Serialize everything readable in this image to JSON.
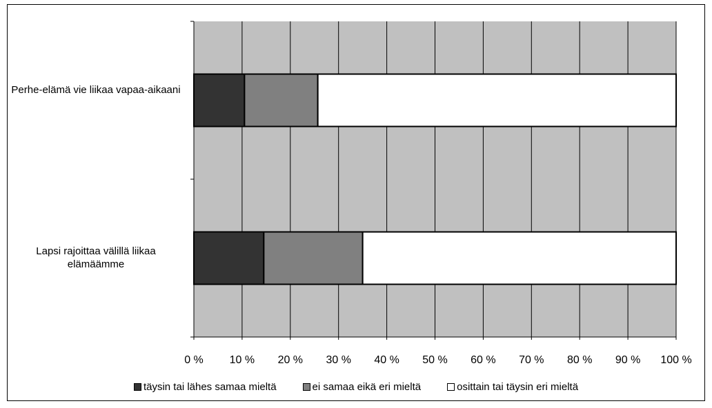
{
  "chart_data": {
    "type": "bar",
    "orientation": "horizontal",
    "stacked": true,
    "percent": true,
    "title": "",
    "xlabel": "",
    "ylabel": "",
    "xlim": [
      0,
      100
    ],
    "x_ticks": [
      "0 %",
      "10 %",
      "20 %",
      "30 %",
      "40 %",
      "50 %",
      "60 %",
      "70 %",
      "80 %",
      "90 %",
      "100 %"
    ],
    "categories": [
      "Perhe-elämä vie liikaa vapaa-aikaani",
      "Lapsi rajoittaa välillä liikaa elämäämme"
    ],
    "series": [
      {
        "name": "täysin tai lähes samaa mieltä",
        "values": [
          10.5,
          14.5
        ],
        "color": "#333333"
      },
      {
        "name": "ei samaa eikä eri mieltä",
        "values": [
          15.2,
          20.5
        ],
        "color": "#808080"
      },
      {
        "name": "osittain tai täysin eri mieltä",
        "values": [
          74.3,
          65.0
        ],
        "color": "#ffffff"
      }
    ],
    "plot_background": "#c0c0c0",
    "grid": true,
    "legend_position": "bottom"
  }
}
